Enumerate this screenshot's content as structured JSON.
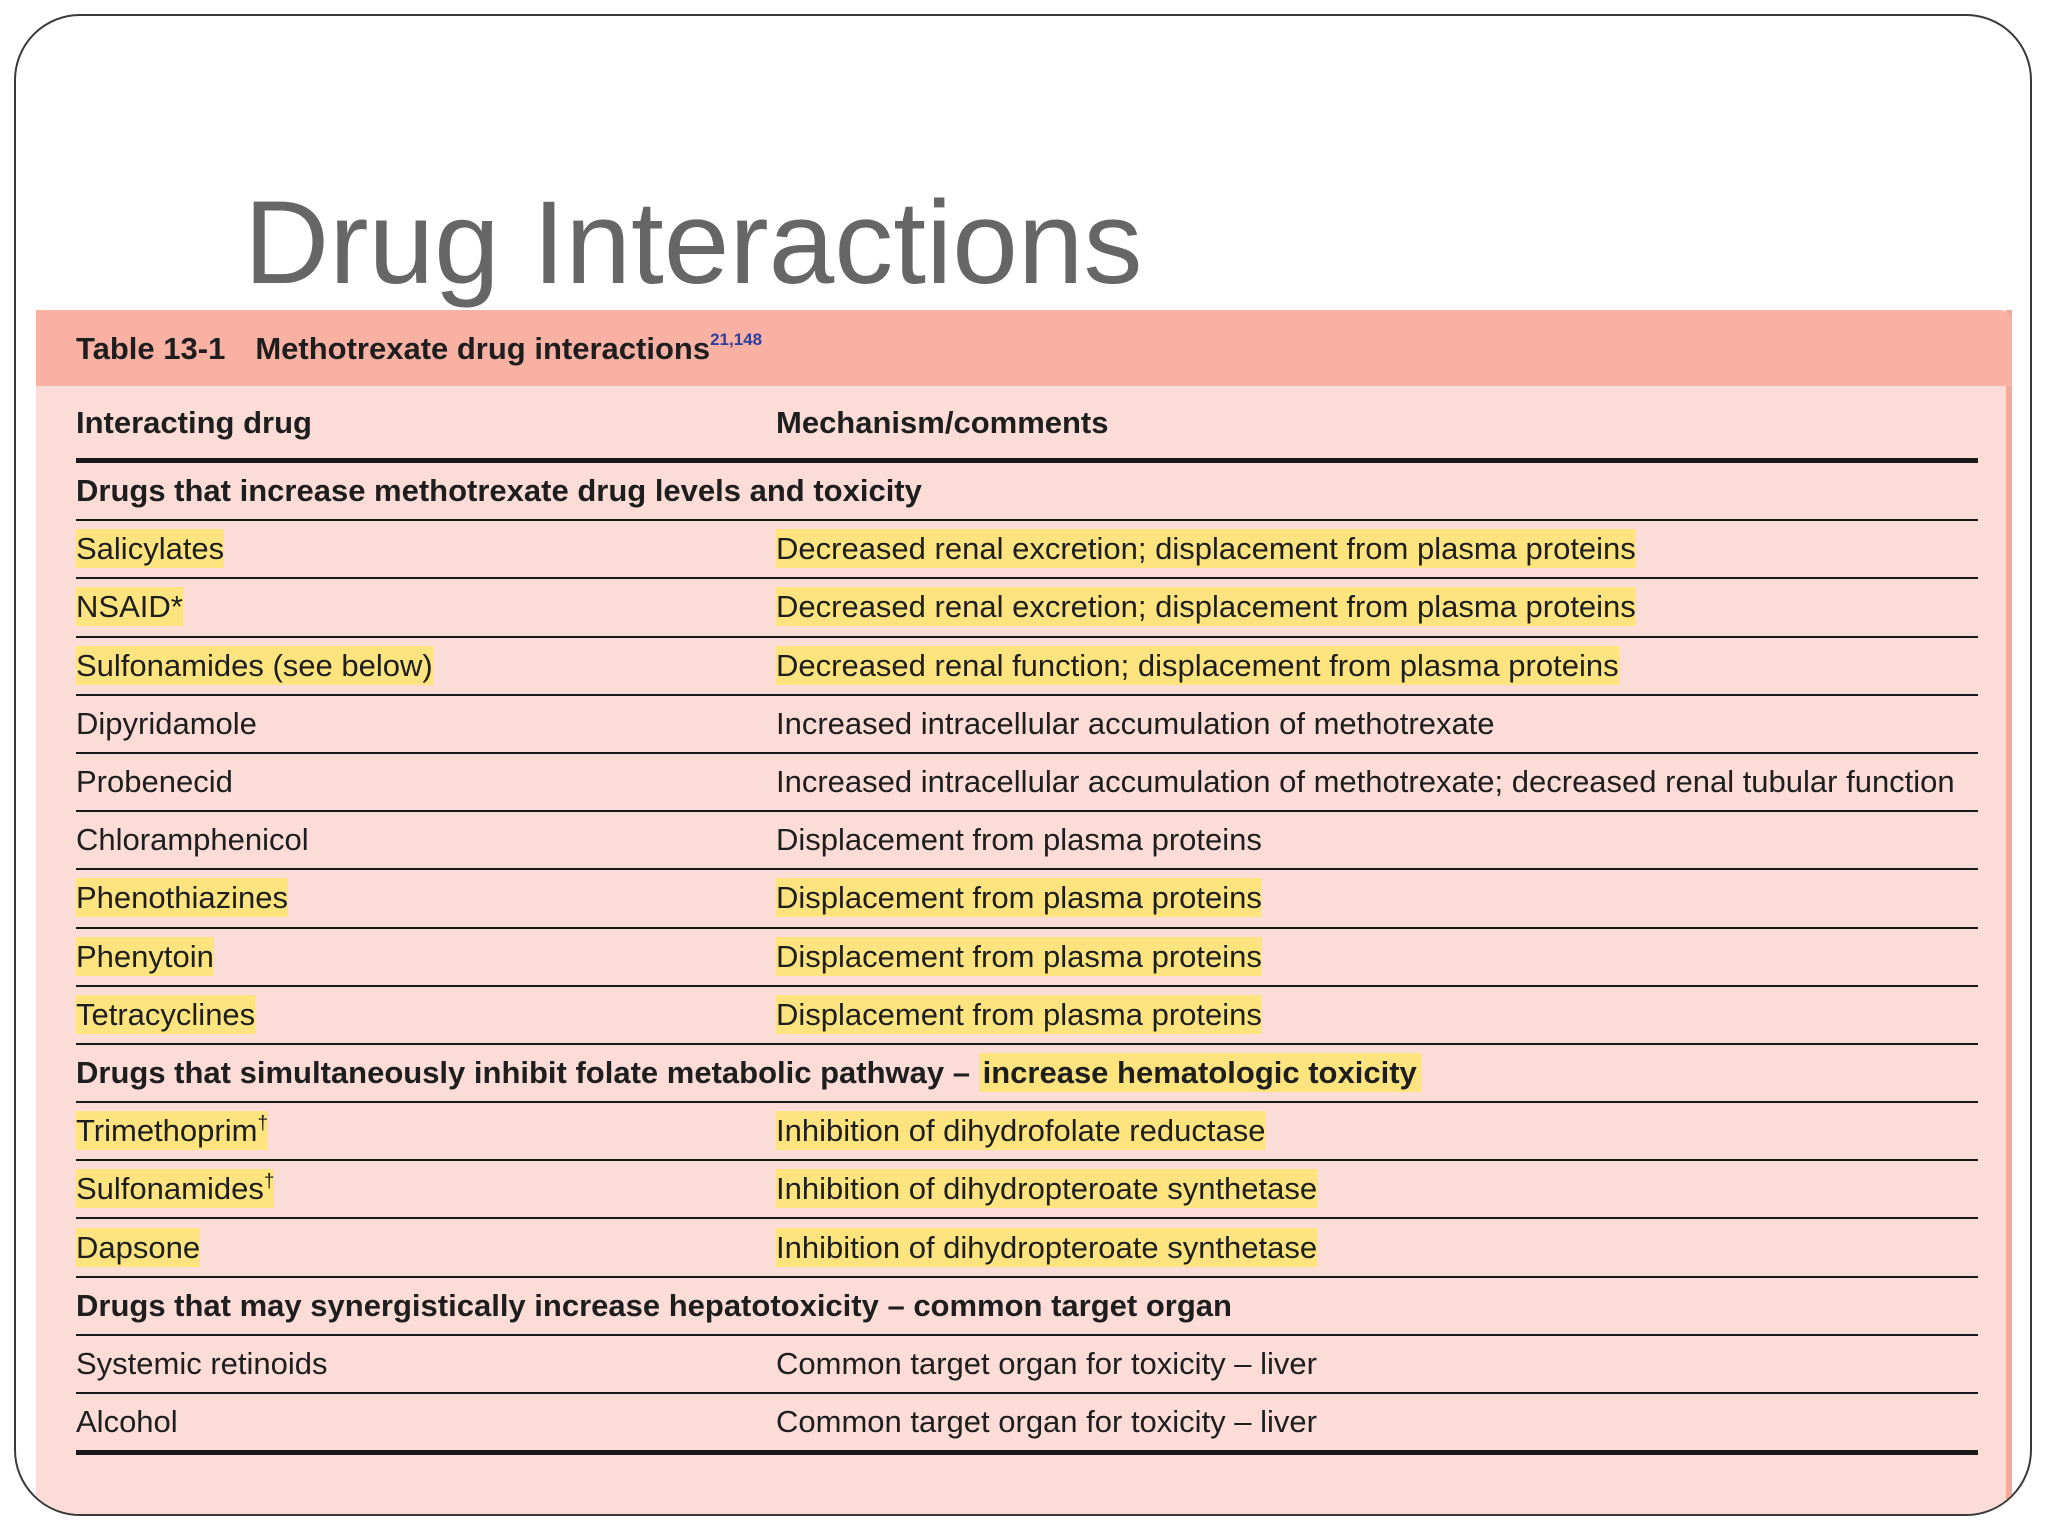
{
  "slide": {
    "title": "Drug Interactions"
  },
  "table": {
    "caption_number": "Table 13-1",
    "caption_title": "Methotrexate drug interactions",
    "caption_refs": "21,148",
    "headers": {
      "drug": "Interacting drug",
      "mechanism": "Mechanism/comments"
    },
    "sections": [
      {
        "title": "Drugs that increase methotrexate drug levels and toxicity",
        "rows": [
          {
            "drug": "Salicylates",
            "mechanism": "Decreased renal excretion; displacement from plasma proteins"
          },
          {
            "drug": "NSAID*",
            "mechanism": "Decreased renal excretion; displacement from plasma proteins"
          },
          {
            "drug": "Sulfonamides (see below)",
            "mechanism": "Decreased renal function; displacement from plasma proteins"
          },
          {
            "drug": "Dipyridamole",
            "mechanism": "Increased intracellular accumulation of methotrexate"
          },
          {
            "drug": "Probenecid",
            "mechanism": "Increased intracellular accumulation of methotrexate; decreased renal tubular function"
          },
          {
            "drug": "Chloramphenicol",
            "mechanism": "Displacement from plasma proteins"
          },
          {
            "drug": "Phenothiazines",
            "mechanism": "Displacement from plasma proteins"
          },
          {
            "drug": "Phenytoin",
            "mechanism": "Displacement from plasma proteins"
          },
          {
            "drug": "Tetracyclines",
            "mechanism": "Displacement from plasma proteins"
          }
        ]
      },
      {
        "title": "Drugs that simultaneously inhibit folate metabolic pathway –",
        "title_highlighted": "increase hematologic toxicity",
        "rows": [
          {
            "drug": "Trimethoprim",
            "drug_mark": "†",
            "mechanism": "Inhibition of dihydrofolate reductase"
          },
          {
            "drug": "Sulfonamides",
            "drug_mark": "†",
            "mechanism": "Inhibition of dihydropteroate synthetase"
          },
          {
            "drug": "Dapsone",
            "mechanism": "Inhibition of dihydropteroate synthetase"
          }
        ]
      },
      {
        "title": "Drugs that may synergistically increase hepatotoxicity – common target organ",
        "rows": [
          {
            "drug": "Systemic retinoids",
            "mechanism": "Common target organ for toxicity – liver"
          },
          {
            "drug": "Alcohol",
            "mechanism": "Common target organ for toxicity – liver"
          }
        ]
      }
    ]
  },
  "colors": {
    "caption_bar": "#f8b1a3",
    "table_background": "#fcdcd7",
    "highlight": "#fde47f",
    "title_text": "#666666"
  }
}
